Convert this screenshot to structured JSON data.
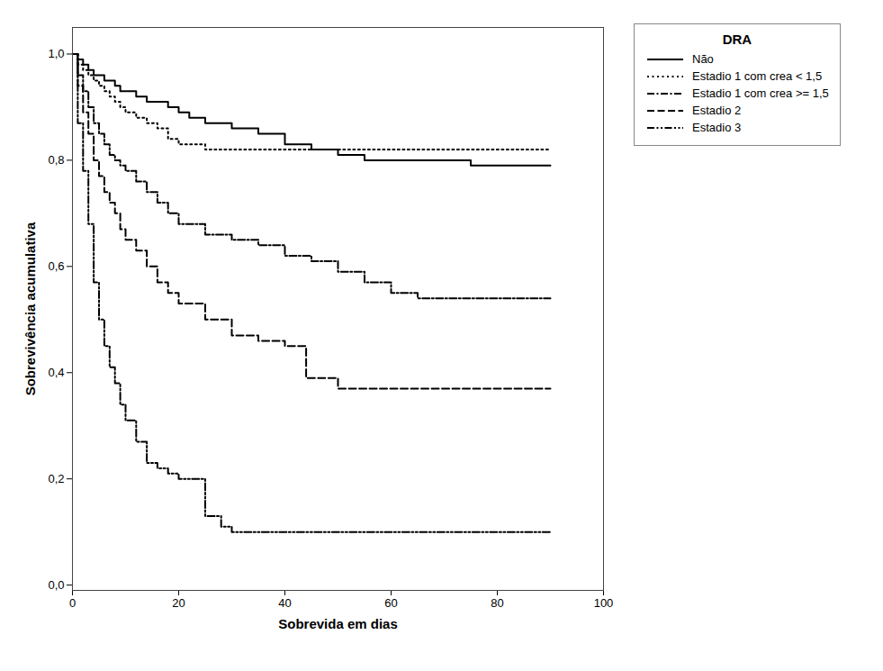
{
  "chart_data": {
    "type": "step",
    "xlabel": "Sobrevida em dias",
    "ylabel": "Sobrevivência acumulativa",
    "xlim": [
      0,
      100
    ],
    "ylim": [
      -0.01,
      1.05
    ],
    "xticks": [
      0,
      20,
      40,
      60,
      80,
      100
    ],
    "yticks": [
      {
        "value": 0.0,
        "label": "0,0"
      },
      {
        "value": 0.2,
        "label": "0,2"
      },
      {
        "value": 0.4,
        "label": "0,4"
      },
      {
        "value": 0.6,
        "label": "0,6"
      },
      {
        "value": 0.8,
        "label": "0,8"
      },
      {
        "value": 1.0,
        "label": "1,0"
      }
    ],
    "grid": false,
    "legend": "right",
    "legend_title": "DRA",
    "series": [
      {
        "name": "Não",
        "color": "#000000",
        "line_style": "solid",
        "x": [
          0,
          1,
          2,
          3,
          4,
          5,
          6,
          7,
          8,
          9,
          10,
          12,
          14,
          16,
          18,
          20,
          22,
          25,
          30,
          35,
          40,
          45,
          50,
          55,
          60,
          65,
          70,
          75,
          80,
          85,
          90
        ],
        "values": [
          1.0,
          0.99,
          0.98,
          0.97,
          0.96,
          0.96,
          0.95,
          0.95,
          0.94,
          0.93,
          0.93,
          0.92,
          0.91,
          0.91,
          0.9,
          0.89,
          0.88,
          0.87,
          0.86,
          0.85,
          0.83,
          0.82,
          0.81,
          0.8,
          0.8,
          0.8,
          0.8,
          0.79,
          0.79,
          0.79,
          0.79
        ]
      },
      {
        "name": "Estadio 1 com crea < 1,5",
        "color": "#000000",
        "line_style": "dotted",
        "x": [
          0,
          1,
          2,
          3,
          4,
          5,
          6,
          7,
          8,
          9,
          10,
          12,
          14,
          16,
          18,
          20,
          25,
          30,
          40,
          50,
          60,
          70,
          80,
          90
        ],
        "values": [
          1.0,
          0.98,
          0.97,
          0.96,
          0.95,
          0.94,
          0.93,
          0.92,
          0.91,
          0.9,
          0.89,
          0.88,
          0.87,
          0.86,
          0.84,
          0.83,
          0.82,
          0.82,
          0.82,
          0.82,
          0.82,
          0.82,
          0.82,
          0.82
        ]
      },
      {
        "name": "Estadio 1 com crea >= 1,5",
        "color": "#000000",
        "line_style": "dashdot",
        "x": [
          0,
          1,
          2,
          3,
          4,
          5,
          6,
          7,
          8,
          9,
          10,
          12,
          14,
          16,
          18,
          20,
          25,
          30,
          35,
          40,
          45,
          50,
          55,
          60,
          65,
          70,
          75,
          80,
          85,
          90
        ],
        "values": [
          1.0,
          0.96,
          0.93,
          0.9,
          0.87,
          0.85,
          0.83,
          0.81,
          0.8,
          0.79,
          0.78,
          0.76,
          0.74,
          0.72,
          0.7,
          0.68,
          0.66,
          0.65,
          0.64,
          0.62,
          0.61,
          0.59,
          0.57,
          0.55,
          0.54,
          0.54,
          0.54,
          0.54,
          0.54,
          0.54
        ]
      },
      {
        "name": "Estadio 2",
        "color": "#000000",
        "line_style": "dashed",
        "x": [
          0,
          1,
          2,
          3,
          4,
          5,
          6,
          7,
          8,
          9,
          10,
          12,
          14,
          16,
          18,
          20,
          25,
          30,
          35,
          40,
          44,
          50,
          60,
          70,
          80,
          90
        ],
        "values": [
          1.0,
          0.94,
          0.89,
          0.85,
          0.8,
          0.77,
          0.74,
          0.72,
          0.7,
          0.67,
          0.65,
          0.63,
          0.6,
          0.57,
          0.55,
          0.53,
          0.5,
          0.47,
          0.46,
          0.45,
          0.39,
          0.37,
          0.37,
          0.37,
          0.37,
          0.37
        ]
      },
      {
        "name": "Estadio 3",
        "color": "#000000",
        "line_style": "dashdotdot",
        "x": [
          0,
          1,
          2,
          3,
          4,
          5,
          6,
          7,
          8,
          9,
          10,
          12,
          14,
          16,
          18,
          20,
          22,
          25,
          28,
          30,
          90
        ],
        "values": [
          1.0,
          0.87,
          0.78,
          0.68,
          0.57,
          0.5,
          0.45,
          0.41,
          0.38,
          0.34,
          0.31,
          0.27,
          0.23,
          0.22,
          0.21,
          0.2,
          0.2,
          0.13,
          0.11,
          0.1,
          0.1
        ]
      }
    ]
  }
}
